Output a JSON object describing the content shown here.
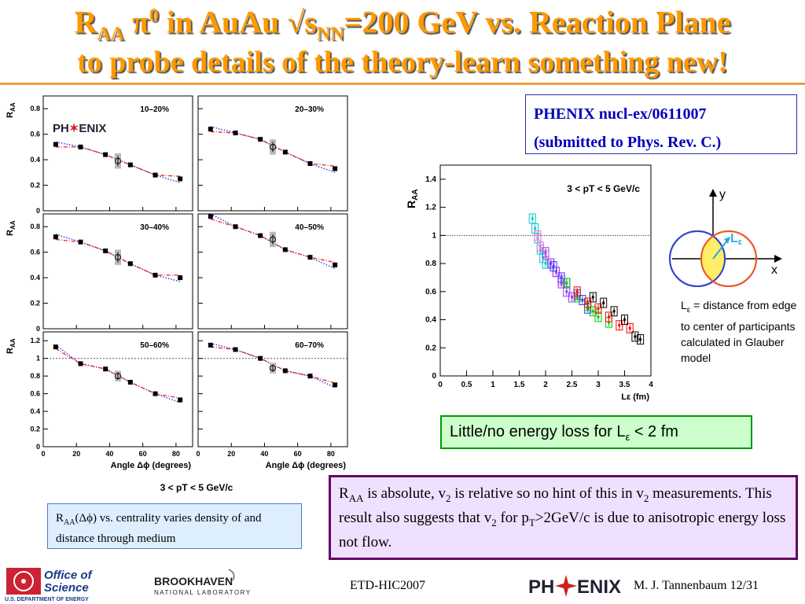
{
  "slide": {
    "title_parts": [
      "R",
      "AA",
      " π",
      "0",
      " in AuAu √s",
      "NN",
      "=200 GeV vs. Reaction Plane"
    ],
    "subtitle": "to probe details of the theory-learn something new!",
    "ref_line1": "PHENIX nucl-ex/0611007",
    "ref_line2": "(submitted to Phys. Rev. C.)",
    "green_box": {
      "pre": "Little/no energy loss for L",
      "sub": "ε",
      "post": " < 2 fm"
    },
    "purple_box": [
      "R",
      "AA",
      " is absolute,  v",
      "2",
      " is relative so no hint of this in v",
      "2",
      " measurements. This result also suggests that v",
      "2",
      " for p",
      "T",
      ">2GeV/c is due to anisotropic energy loss not flow."
    ],
    "blue_box": [
      "R",
      "AA",
      "(Δϕ) vs. centrality varies density of and distance through medium"
    ],
    "side_note": [
      "L",
      "ε",
      " =  distance from edge to center of participants calculated in Glauber model"
    ],
    "diagram": {
      "y_label": "y",
      "x_label": "x",
      "l_label": "L",
      "l_sub": "ε"
    },
    "footer": {
      "office": "Office of",
      "science": "Science",
      "doe": "U.S. DEPARTMENT OF ENERGY",
      "bnl": "BROOKHAVEN",
      "bnl2": "NATIONAL LABORATORY",
      "conf": "ETD-HIC2007",
      "phenix": "PH",
      "phenix2": "ENIX",
      "author": "M. J. Tannenbaum   12/31"
    },
    "colors": {
      "title": "#ff9900",
      "accent_rule": "#e8a040"
    }
  },
  "chart_data": [
    {
      "type": "scatter",
      "title": "",
      "logo": "PHENIX",
      "xlabel": "Angle Δϕ (degrees)",
      "ylabel": "R_AA",
      "pt_label": "3 < pT < 5 GeV/c",
      "xlim": [
        0,
        90
      ],
      "xticks": [
        0,
        20,
        40,
        60,
        80
      ],
      "panels": [
        {
          "label": "10–20%",
          "ylim": [
            0,
            0.9
          ],
          "yticks": [
            0,
            0.2,
            0.4,
            0.6,
            0.8
          ],
          "x": [
            7.5,
            22.5,
            37.5,
            52.5,
            67.5,
            82.5
          ],
          "y": [
            0.52,
            0.5,
            0.44,
            0.36,
            0.28,
            0.25
          ],
          "avg": {
            "x": 45,
            "y": 0.39
          }
        },
        {
          "label": "20–30%",
          "ylim": [
            0,
            0.9
          ],
          "yticks": [
            0,
            0.2,
            0.4,
            0.6,
            0.8
          ],
          "x": [
            7.5,
            22.5,
            37.5,
            52.5,
            67.5,
            82.5
          ],
          "y": [
            0.64,
            0.61,
            0.56,
            0.46,
            0.37,
            0.33
          ],
          "avg": {
            "x": 45,
            "y": 0.5
          }
        },
        {
          "label": "30–40%",
          "ylim": [
            0,
            0.9
          ],
          "yticks": [
            0,
            0.2,
            0.4,
            0.6,
            0.8
          ],
          "x": [
            7.5,
            22.5,
            37.5,
            52.5,
            67.5,
            82.5
          ],
          "y": [
            0.72,
            0.68,
            0.61,
            0.51,
            0.42,
            0.4
          ],
          "avg": {
            "x": 45,
            "y": 0.56
          }
        },
        {
          "label": "40–50%",
          "ylim": [
            0,
            0.9
          ],
          "yticks": [
            0,
            0.2,
            0.4,
            0.6,
            0.8
          ],
          "x": [
            7.5,
            22.5,
            37.5,
            52.5,
            67.5,
            82.5
          ],
          "y": [
            0.88,
            0.8,
            0.73,
            0.62,
            0.56,
            0.5
          ],
          "avg": {
            "x": 45,
            "y": 0.7
          }
        },
        {
          "label": "50–60%",
          "ylim": [
            0,
            1.3
          ],
          "yticks": [
            0,
            0.2,
            0.4,
            0.6,
            0.8,
            1,
            1.2
          ],
          "x": [
            7.5,
            22.5,
            37.5,
            52.5,
            67.5,
            82.5
          ],
          "y": [
            1.13,
            0.94,
            0.88,
            0.73,
            0.6,
            0.53
          ],
          "avg": {
            "x": 45,
            "y": 0.8
          }
        },
        {
          "label": "60–70%",
          "ylim": [
            0,
            1.3
          ],
          "yticks": [
            0,
            0.2,
            0.4,
            0.6,
            0.8,
            1,
            1.2
          ],
          "x": [
            7.5,
            22.5,
            37.5,
            52.5,
            67.5,
            82.5
          ],
          "y": [
            1.15,
            1.1,
            1.0,
            0.86,
            0.8,
            0.7
          ],
          "avg": {
            "x": 45,
            "y": 0.89
          }
        }
      ]
    },
    {
      "type": "scatter",
      "title": "",
      "label": "3 < pT < 5 GeV/c",
      "xlabel": "Lε (fm)",
      "ylabel": "R_AA",
      "xlim": [
        0,
        4
      ],
      "ylim": [
        0,
        1.5
      ],
      "xticks": [
        0,
        0.5,
        1,
        1.5,
        2,
        2.5,
        3,
        3.5,
        4
      ],
      "yticks": [
        0,
        0.2,
        0.4,
        0.6,
        0.8,
        1,
        1.2,
        1.4
      ],
      "reference_line": 1,
      "series": [
        {
          "color": "#00cccc",
          "x": [
            1.75,
            1.8,
            1.85,
            1.9,
            1.95,
            2.0
          ],
          "y": [
            1.12,
            1.05,
            0.98,
            0.9,
            0.84,
            0.8
          ]
        },
        {
          "color": "#ff66cc",
          "x": [
            1.85,
            1.9,
            2.0,
            2.1,
            2.2,
            2.3
          ],
          "y": [
            1.0,
            0.92,
            0.86,
            0.8,
            0.74,
            0.68
          ]
        },
        {
          "color": "#9933ff",
          "x": [
            2.0,
            2.1,
            2.2,
            2.3,
            2.4,
            2.5
          ],
          "y": [
            0.88,
            0.8,
            0.74,
            0.66,
            0.6,
            0.56
          ]
        },
        {
          "color": "#3333ff",
          "x": [
            2.15,
            2.3,
            2.4,
            2.6,
            2.7,
            2.8
          ],
          "y": [
            0.78,
            0.7,
            0.66,
            0.58,
            0.54,
            0.48
          ]
        },
        {
          "color": "#00cc00",
          "x": [
            2.4,
            2.6,
            2.8,
            2.9,
            3.0,
            3.2
          ],
          "y": [
            0.66,
            0.56,
            0.5,
            0.46,
            0.42,
            0.38
          ]
        },
        {
          "color": "#ff0000",
          "x": [
            2.6,
            2.8,
            3.0,
            3.2,
            3.4,
            3.6
          ],
          "y": [
            0.6,
            0.52,
            0.48,
            0.42,
            0.36,
            0.34
          ]
        },
        {
          "color": "#000000",
          "x": [
            2.9,
            3.1,
            3.3,
            3.5,
            3.7,
            3.8
          ],
          "y": [
            0.56,
            0.52,
            0.46,
            0.4,
            0.28,
            0.26
          ]
        }
      ]
    }
  ]
}
